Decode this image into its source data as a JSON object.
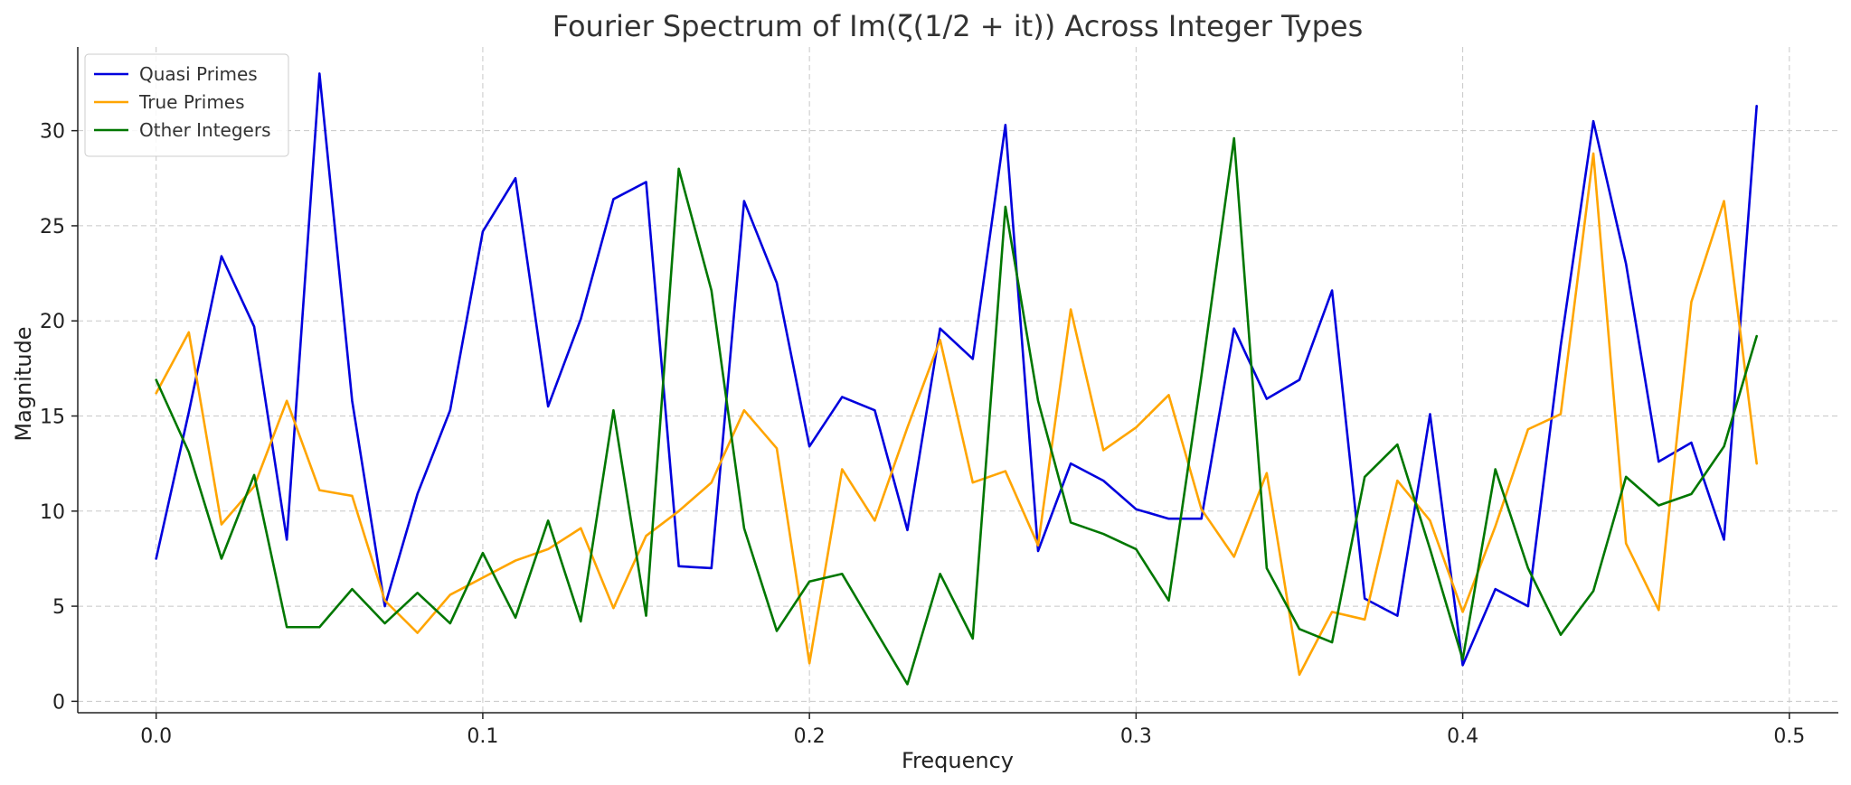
{
  "chart_data": {
    "type": "line",
    "title": "Fourier Spectrum of Im(ζ(1/2 + it)) Across Integer Types",
    "xlabel": "Frequency",
    "ylabel": "Magnitude",
    "xlim": [
      -0.024,
      0.515
    ],
    "ylim": [
      -0.6,
      34.4
    ],
    "xticks": [
      0.0,
      0.1,
      0.2,
      0.3,
      0.4,
      0.5
    ],
    "xtick_labels": [
      "0.0",
      "0.1",
      "0.2",
      "0.3",
      "0.4",
      "0.5"
    ],
    "yticks": [
      0,
      5,
      10,
      15,
      20,
      25,
      30
    ],
    "ytick_labels": [
      "0",
      "5",
      "10",
      "15",
      "20",
      "25",
      "30"
    ],
    "grid": true,
    "legend_position": "top-left",
    "x": [
      0.0,
      0.01,
      0.02,
      0.03,
      0.04,
      0.05,
      0.06,
      0.07,
      0.08,
      0.09,
      0.1,
      0.11,
      0.12,
      0.13,
      0.14,
      0.15,
      0.16,
      0.17,
      0.18,
      0.19,
      0.2,
      0.21,
      0.22,
      0.23,
      0.24,
      0.25,
      0.26,
      0.27,
      0.28,
      0.29,
      0.3,
      0.31,
      0.32,
      0.33,
      0.34,
      0.35,
      0.36,
      0.37,
      0.38,
      0.39,
      0.4,
      0.41,
      0.42,
      0.43,
      0.44,
      0.45,
      0.46,
      0.47,
      0.48,
      0.49
    ],
    "series": [
      {
        "name": "Quasi Primes",
        "color": "#0000dd",
        "values": [
          7.5,
          15.2,
          23.4,
          19.7,
          8.5,
          33.0,
          15.8,
          5.0,
          10.9,
          15.3,
          24.7,
          27.5,
          15.5,
          20.1,
          26.4,
          27.3,
          7.1,
          7.0,
          26.3,
          22.0,
          13.4,
          16.0,
          15.3,
          9.0,
          19.6,
          18.0,
          30.3,
          7.9,
          12.5,
          11.6,
          10.1,
          9.6,
          9.6,
          19.6,
          15.9,
          16.9,
          21.6,
          5.4,
          4.5,
          15.1,
          1.9,
          5.9,
          5.0,
          18.7,
          30.5,
          23.0,
          12.6,
          13.6,
          8.5,
          31.3
        ]
      },
      {
        "name": "True Primes",
        "color": "#ffa500",
        "values": [
          16.2,
          19.4,
          9.3,
          11.3,
          15.8,
          11.1,
          10.8,
          5.3,
          3.6,
          5.6,
          6.5,
          7.4,
          8.0,
          9.1,
          4.9,
          8.7,
          10.0,
          11.5,
          15.3,
          13.3,
          2.0,
          12.2,
          9.5,
          14.4,
          19.0,
          11.5,
          12.1,
          8.2,
          20.6,
          13.2,
          14.4,
          16.1,
          10.1,
          7.6,
          12.0,
          1.4,
          4.7,
          4.3,
          11.6,
          9.5,
          4.7,
          9.2,
          14.3,
          15.1,
          28.8,
          8.3,
          4.8,
          21.0,
          26.3,
          12.5
        ]
      },
      {
        "name": "Other Integers",
        "color": "#007700",
        "values": [
          16.9,
          13.1,
          7.5,
          11.9,
          3.9,
          3.9,
          5.9,
          4.1,
          5.7,
          4.1,
          7.8,
          4.4,
          9.5,
          4.2,
          15.3,
          4.5,
          28.0,
          21.6,
          9.1,
          3.7,
          6.3,
          6.7,
          3.8,
          0.9,
          6.7,
          3.3,
          26.0,
          15.8,
          9.4,
          8.8,
          8.0,
          5.3,
          17.1,
          29.6,
          7.0,
          3.8,
          3.1,
          11.8,
          13.5,
          8.0,
          2.2,
          12.2,
          7.0,
          3.5,
          5.8,
          11.8,
          10.3,
          10.9,
          13.4,
          19.2
        ]
      }
    ]
  }
}
